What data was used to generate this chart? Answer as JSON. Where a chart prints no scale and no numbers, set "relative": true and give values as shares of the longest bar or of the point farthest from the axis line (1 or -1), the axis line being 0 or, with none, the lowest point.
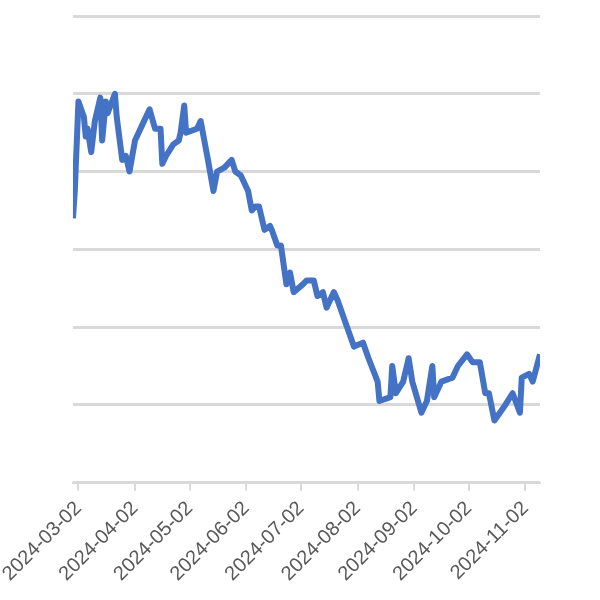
{
  "chart_data": {
    "type": "line",
    "relative": true,
    "grid": "y",
    "legend": false,
    "marker": "none",
    "line_style": "solid",
    "xlim": [
      "2024-02-28",
      "2024-11-10"
    ],
    "xticks": [
      "2024-03-02",
      "2024-04-02",
      "2024-05-02",
      "2024-06-02",
      "2024-07-02",
      "2024-08-02",
      "2024-09-02",
      "2024-10-02",
      "2024-11-02"
    ],
    "x": [
      "2024-02-28",
      "2024-02-29",
      "2024-03-02",
      "2024-03-05",
      "2024-03-06",
      "2024-03-07",
      "2024-03-09",
      "2024-03-11",
      "2024-03-14",
      "2024-03-15",
      "2024-03-17",
      "2024-03-18",
      "2024-03-22",
      "2024-03-23",
      "2024-03-26",
      "2024-03-28",
      "2024-03-30",
      "2024-04-02",
      "2024-04-06",
      "2024-04-10",
      "2024-04-13",
      "2024-04-16",
      "2024-04-17",
      "2024-04-19",
      "2024-04-23",
      "2024-04-26",
      "2024-04-27",
      "2024-04-29",
      "2024-04-30",
      "2024-05-06",
      "2024-05-08",
      "2024-05-10",
      "2024-05-12",
      "2024-05-15",
      "2024-05-17",
      "2024-05-21",
      "2024-05-25",
      "2024-05-27",
      "2024-05-30",
      "2024-06-03",
      "2024-06-05",
      "2024-06-07",
      "2024-06-09",
      "2024-06-12",
      "2024-06-15",
      "2024-06-16",
      "2024-06-19",
      "2024-06-21",
      "2024-06-24",
      "2024-06-26",
      "2024-06-28",
      "2024-07-03",
      "2024-07-05",
      "2024-07-09",
      "2024-07-11",
      "2024-07-14",
      "2024-07-16",
      "2024-07-20",
      "2024-07-22",
      "2024-07-28",
      "2024-07-31",
      "2024-08-05",
      "2024-08-08",
      "2024-08-13",
      "2024-08-14",
      "2024-08-20",
      "2024-08-21",
      "2024-08-23",
      "2024-08-27",
      "2024-08-30",
      "2024-09-01",
      "2024-09-06",
      "2024-09-09",
      "2024-09-12",
      "2024-09-13",
      "2024-09-17",
      "2024-09-23",
      "2024-09-26",
      "2024-10-01",
      "2024-10-04",
      "2024-10-08",
      "2024-10-11",
      "2024-10-13",
      "2024-10-16",
      "2024-10-19",
      "2024-10-22",
      "2024-10-26",
      "2024-10-30",
      "2024-10-31",
      "2024-11-04",
      "2024-11-06",
      "2024-11-10"
    ],
    "series": [
      {
        "color": "#4472c4",
        "values": [
          0.68,
          0.75,
          0.98,
          0.94,
          0.89,
          0.91,
          0.85,
          0.93,
          0.99,
          0.88,
          0.98,
          0.95,
          1.0,
          0.94,
          0.83,
          0.84,
          0.8,
          0.88,
          0.92,
          0.96,
          0.91,
          0.91,
          0.82,
          0.84,
          0.87,
          0.88,
          0.9,
          0.97,
          0.9,
          0.91,
          0.93,
          0.88,
          0.83,
          0.75,
          0.8,
          0.81,
          0.83,
          0.8,
          0.79,
          0.75,
          0.7,
          0.71,
          0.71,
          0.65,
          0.66,
          0.65,
          0.61,
          0.61,
          0.51,
          0.54,
          0.49,
          0.51,
          0.52,
          0.52,
          0.48,
          0.49,
          0.45,
          0.49,
          0.47,
          0.39,
          0.35,
          0.36,
          0.32,
          0.26,
          0.21,
          0.22,
          0.3,
          0.23,
          0.26,
          0.32,
          0.26,
          0.18,
          0.21,
          0.3,
          0.22,
          0.26,
          0.27,
          0.3,
          0.33,
          0.31,
          0.31,
          0.23,
          0.23,
          0.16,
          0.18,
          0.2,
          0.23,
          0.18,
          0.27,
          0.28,
          0.26,
          0.33
        ]
      }
    ]
  }
}
